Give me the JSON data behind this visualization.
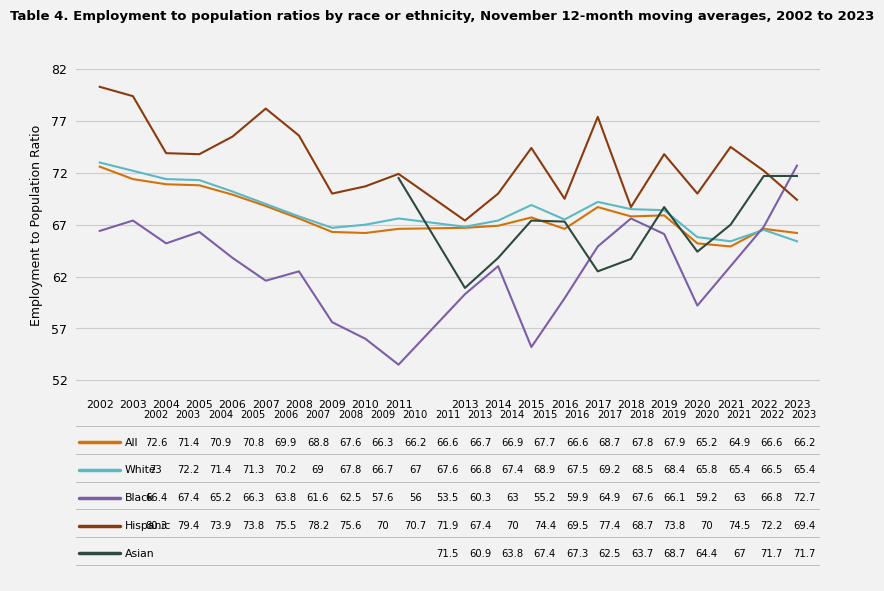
{
  "title": "Table 4. Employment to population ratios by race or ethnicity, November 12-month moving averages, 2002 to 2023",
  "ylabel": "Employment to Population Ratio",
  "series": {
    "All": {
      "color": "#D4720A",
      "years": [
        2002,
        2003,
        2004,
        2005,
        2006,
        2007,
        2008,
        2009,
        2010,
        2011,
        2013,
        2014,
        2015,
        2016,
        2017,
        2018,
        2019,
        2020,
        2021,
        2022,
        2023
      ],
      "values": [
        72.6,
        71.4,
        70.9,
        70.8,
        69.9,
        68.8,
        67.6,
        66.3,
        66.2,
        66.6,
        66.7,
        66.9,
        67.7,
        66.6,
        68.7,
        67.8,
        67.9,
        65.2,
        64.9,
        66.6,
        66.2
      ]
    },
    "White": {
      "color": "#5BB8C4",
      "years": [
        2002,
        2003,
        2004,
        2005,
        2006,
        2007,
        2008,
        2009,
        2010,
        2011,
        2013,
        2014,
        2015,
        2016,
        2017,
        2018,
        2019,
        2020,
        2021,
        2022,
        2023
      ],
      "values": [
        73.0,
        72.2,
        71.4,
        71.3,
        70.2,
        69.0,
        67.8,
        66.7,
        67.0,
        67.6,
        66.8,
        67.4,
        68.9,
        67.5,
        69.2,
        68.5,
        68.4,
        65.8,
        65.4,
        66.5,
        65.4
      ]
    },
    "Black": {
      "color": "#7B5EA7",
      "years": [
        2002,
        2003,
        2004,
        2005,
        2006,
        2007,
        2008,
        2009,
        2010,
        2011,
        2013,
        2014,
        2015,
        2016,
        2017,
        2018,
        2019,
        2020,
        2021,
        2022,
        2023
      ],
      "values": [
        66.4,
        67.4,
        65.2,
        66.3,
        63.8,
        61.6,
        62.5,
        57.6,
        56.0,
        53.5,
        60.3,
        63.0,
        55.2,
        59.9,
        64.9,
        67.6,
        66.1,
        59.2,
        63.0,
        66.8,
        72.7
      ]
    },
    "Hispanic": {
      "color": "#8B3A0F",
      "years": [
        2002,
        2003,
        2004,
        2005,
        2006,
        2007,
        2008,
        2009,
        2010,
        2011,
        2013,
        2014,
        2015,
        2016,
        2017,
        2018,
        2019,
        2020,
        2021,
        2022,
        2023
      ],
      "values": [
        80.3,
        79.4,
        73.9,
        73.8,
        75.5,
        78.2,
        75.6,
        70.0,
        70.7,
        71.9,
        67.4,
        70.0,
        74.4,
        69.5,
        77.4,
        68.7,
        73.8,
        70.0,
        74.5,
        72.2,
        69.4
      ]
    },
    "Asian": {
      "color": "#2D4A3E",
      "years": [
        2011,
        2013,
        2014,
        2015,
        2016,
        2017,
        2018,
        2019,
        2020,
        2021,
        2022,
        2023
      ],
      "values": [
        71.5,
        60.9,
        63.8,
        67.4,
        67.3,
        62.5,
        63.7,
        68.7,
        64.4,
        67.0,
        71.7,
        71.7
      ]
    }
  },
  "table_years": [
    2002,
    2003,
    2004,
    2005,
    2006,
    2007,
    2008,
    2009,
    2010,
    2011,
    2013,
    2014,
    2015,
    2016,
    2017,
    2018,
    2019,
    2020,
    2021,
    2022,
    2023
  ],
  "yticks": [
    52,
    57,
    62,
    67,
    72,
    77,
    82
  ],
  "ylim": [
    51,
    83
  ],
  "background_color": "#F2F2F2",
  "grid_color": "#CCCCCC"
}
